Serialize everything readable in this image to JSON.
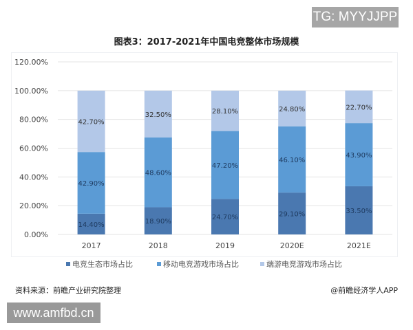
{
  "watermark_top": "TG: MYYJJPP",
  "watermark_bottom": "www.amfbd.cn",
  "source": "资料来源：前瞻产业研究院整理",
  "credit": "@前瞻经济学人APP",
  "chart_data": {
    "type": "bar",
    "stacked": true,
    "title": "图表3：2017-2021年中国电竞整体市场规模",
    "categories": [
      "2017",
      "2018",
      "2019",
      "2020E",
      "2021E"
    ],
    "ylim": [
      0,
      120
    ],
    "yticks": [
      "0.00%",
      "20.00%",
      "40.00%",
      "60.00%",
      "80.00%",
      "100.00%",
      "120.00%"
    ],
    "legend_position": "bottom",
    "series": [
      {
        "name": "电竞生态市场占比",
        "values": [
          14.4,
          18.9,
          24.7,
          29.1,
          33.5
        ],
        "labels": [
          "14.40%",
          "18.90%",
          "24.70%",
          "29.10%",
          "33.50%"
        ],
        "color": "#4a78b0"
      },
      {
        "name": "移动电竞游戏市场占比",
        "values": [
          42.9,
          48.6,
          47.2,
          46.1,
          43.9
        ],
        "labels": [
          "42.90%",
          "48.60%",
          "47.20%",
          "46.10%",
          "43.90%"
        ],
        "color": "#5b9bd5"
      },
      {
        "name": "端游电竞游戏市场占比",
        "values": [
          42.7,
          32.5,
          28.1,
          24.8,
          22.7
        ],
        "labels": [
          "42.70%",
          "32.50%",
          "28.10%",
          "24.80%",
          "22.70%"
        ],
        "color": "#b3c8e8"
      }
    ]
  }
}
